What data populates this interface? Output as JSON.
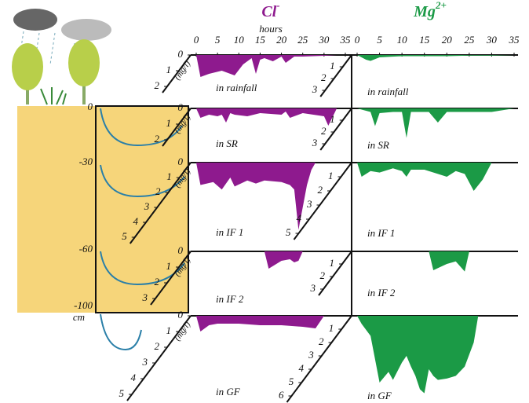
{
  "chart_data": {
    "type": "area",
    "x_label": "hours",
    "xlim": [
      0,
      35
    ],
    "xticks": [
      0,
      5,
      10,
      15,
      20,
      25,
      30,
      35
    ],
    "unit": "(mg/l)",
    "depth_labels": [
      "0",
      "-30",
      "-60",
      "-100"
    ],
    "depth_unit": "cm",
    "species": [
      {
        "name": "Cl",
        "charge": "-",
        "color": "#8e1a8e"
      },
      {
        "name": "Mg",
        "charge": "2+",
        "color": "#1b9a46"
      }
    ],
    "panels": [
      {
        "label": "in rainfall",
        "series": [
          {
            "ylim": [
              0,
              2
            ],
            "yticks": [
              0,
              1,
              2
            ],
            "x": [
              0,
              1,
              3,
              6,
              9,
              11,
              13,
              14,
              15,
              16,
              18,
              20,
              21,
              23,
              25,
              30,
              33
            ],
            "values": [
              0,
              1.4,
              1.2,
              1.0,
              1.3,
              0.6,
              0.2,
              1.2,
              0.3,
              0.2,
              0.4,
              0.1,
              0.5,
              0.1,
              0.1,
              0.05,
              0
            ]
          },
          {
            "ylim": [
              0,
              3
            ],
            "yticks": [
              1,
              2,
              3
            ],
            "x": [
              0,
              2,
              3,
              5,
              10,
              20,
              25,
              30,
              35
            ],
            "values": [
              0,
              0.4,
              0.5,
              0.2,
              0.1,
              0.1,
              0.05,
              0.05,
              0
            ]
          }
        ]
      },
      {
        "label": "in SR",
        "series": [
          {
            "ylim": [
              0,
              2
            ],
            "yticks": [
              0,
              1,
              2
            ],
            "x": [
              0,
              1,
              3,
              5,
              6,
              7,
              8,
              9,
              12,
              15,
              20,
              21,
              22,
              25,
              30,
              31,
              33
            ],
            "values": [
              0,
              0.6,
              0.4,
              0.5,
              0.4,
              0.9,
              0.3,
              0.4,
              0.5,
              0.3,
              0.4,
              0.2,
              0.6,
              0.3,
              0.5,
              1.1,
              0
            ]
          },
          {
            "ylim": [
              0,
              3
            ],
            "yticks": [
              1,
              2,
              3
            ],
            "x": [
              0,
              3,
              4,
              5,
              8,
              10,
              11,
              12,
              16,
              18,
              20,
              25,
              30,
              35
            ],
            "values": [
              0,
              0.3,
              1.5,
              0.4,
              0.3,
              0.3,
              2.5,
              0.3,
              0.3,
              1.2,
              0.3,
              0.3,
              0.3,
              0
            ]
          }
        ]
      },
      {
        "label": "in IF 1",
        "series": [
          {
            "ylim": [
              0,
              5
            ],
            "yticks": [
              0,
              1,
              2,
              3,
              4,
              5
            ],
            "x": [
              0,
              1,
              4,
              6,
              8,
              9,
              12,
              14,
              16,
              20,
              22,
              23,
              24,
              25,
              26,
              27,
              28
            ],
            "values": [
              0,
              1.5,
              1.3,
              1.8,
              1.0,
              1.6,
              1.2,
              1.4,
              1.2,
              1.3,
              1.5,
              1.8,
              4.5,
              3.0,
              1.5,
              0.5,
              0
            ]
          },
          {
            "ylim": [
              0,
              5
            ],
            "yticks": [
              1,
              2,
              3,
              4,
              5
            ],
            "x": [
              0,
              1,
              3,
              5,
              8,
              10,
              11,
              12,
              15,
              18,
              20,
              22,
              24,
              26,
              28,
              30
            ],
            "values": [
              0,
              1.0,
              0.6,
              0.7,
              0.4,
              0.6,
              1.0,
              0.5,
              0.5,
              0.8,
              1.0,
              0.6,
              0.8,
              2.0,
              1.2,
              0
            ]
          }
        ]
      },
      {
        "label": "in IF 2",
        "series": [
          {
            "ylim": [
              0,
              3
            ],
            "yticks": [
              0,
              1,
              2,
              3
            ],
            "x": [
              16,
              17,
              20,
              22,
              23,
              24,
              25
            ],
            "values": [
              0,
              1.1,
              0.6,
              0.5,
              0.7,
              0.6,
              0
            ]
          },
          {
            "ylim": [
              0,
              3
            ],
            "yticks": [
              1,
              2,
              3
            ],
            "x": [
              16,
              17,
              20,
              22,
              24,
              25
            ],
            "values": [
              0,
              1.5,
              1.0,
              0.8,
              1.6,
              0
            ]
          }
        ]
      },
      {
        "label": "in GF",
        "series": [
          {
            "ylim": [
              0,
              5
            ],
            "yticks": [
              0,
              1,
              2,
              3,
              4,
              5
            ],
            "x": [
              0,
              1,
              3,
              5,
              10,
              15,
              20,
              25,
              28,
              30
            ],
            "values": [
              0,
              1.0,
              0.6,
              0.5,
              0.5,
              0.6,
              0.6,
              0.7,
              0.8,
              0
            ]
          },
          {
            "ylim": [
              0,
              6
            ],
            "yticks": [
              1,
              2,
              3,
              4,
              5,
              6
            ],
            "x": [
              0,
              1,
              3,
              5,
              7,
              8,
              10,
              11,
              12,
              13,
              14,
              15,
              16,
              17,
              18,
              20,
              22,
              24,
              26,
              27
            ],
            "values": [
              0,
              0.6,
              1.5,
              5.0,
              4.2,
              4.8,
              3.5,
              3.0,
              3.8,
              4.5,
              5.5,
              5.8,
              4.0,
              4.5,
              4.8,
              4.7,
              4.5,
              3.8,
              2.0,
              0
            ]
          }
        ]
      }
    ]
  }
}
